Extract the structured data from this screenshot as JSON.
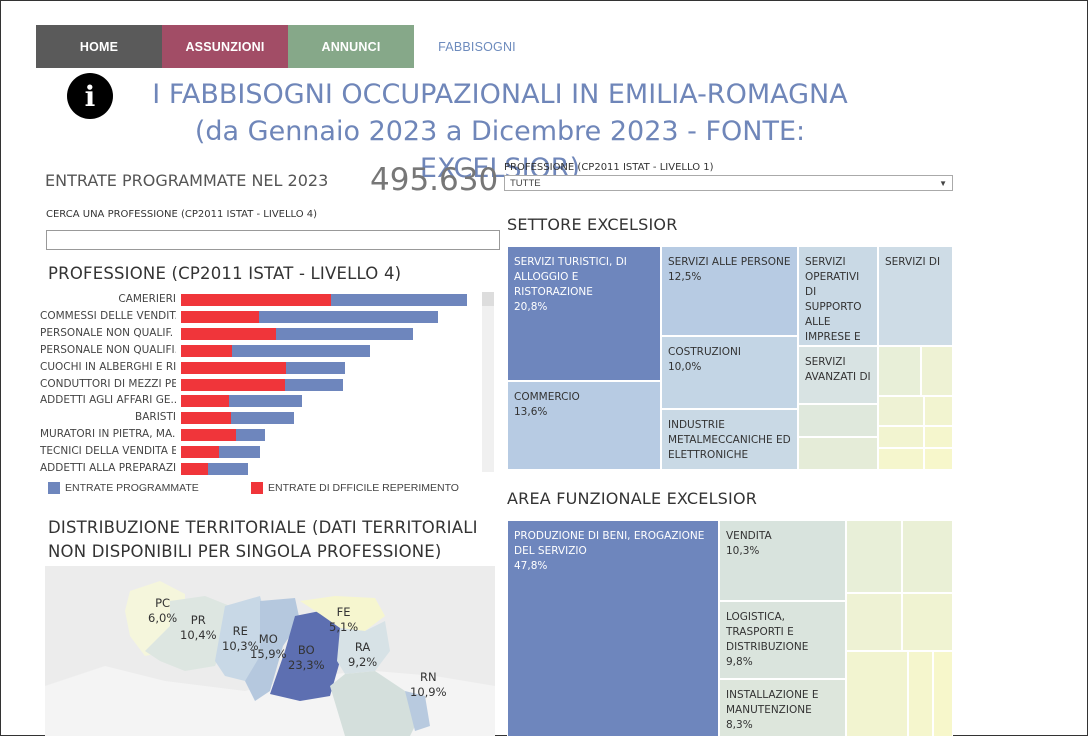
{
  "nav": {
    "home": "HOME",
    "assunzioni": "ASSUNZIONI",
    "annunci": "ANNUNCI",
    "fabbisogni": "FABBISOGNI"
  },
  "info_icon": "info-icon",
  "title_line1": "I FABBISOGNI OCCUPAZIONALI IN EMILIA-ROMAGNA",
  "title_line2": "(da Gennaio 2023 a Dicembre 2023 - FONTE: EXCELSIOR)",
  "entrate": {
    "label": "ENTRATE PROGRAMMATE NEL 2023",
    "value": "495.630"
  },
  "professione_filter": {
    "label": "PROFESSIONE (CP2011 ISTAT - LIVELLO 1)",
    "selected": "TUTTE"
  },
  "search": {
    "label": "CERCA UNA PROFESSIONE (CP2011 ISTAT - LIVELLO 4)",
    "value": ""
  },
  "professione_chart_title": "PROFESSIONE (CP2011 ISTAT - LIVELLO 4)",
  "colors": {
    "entrate": "#6e86bd",
    "difficile": "#f0353a"
  },
  "chart_data": {
    "type": "bar",
    "orientation": "horizontal",
    "categories": [
      "CAMERIERI",
      "COMMESSI DELLE VENDIT..",
      "PERSONALE NON QUALIF. ..",
      "PERSONALE NON QUALIFI..",
      "CUOCHI IN ALBERGHI E RI..",
      "CONDUTTORI DI MEZZI PE..",
      "ADDETTI AGLI AFFARI GE..",
      "BARISTI",
      "MURATORI IN PIETRA, MA..",
      "TECNICI DELLA VENDITA E..",
      "ADDETTI ALLA PREPARAZI.."
    ],
    "series": [
      {
        "name": "ENTRATE PROGRAMMATE",
        "values": [
          286,
          257,
          232,
          189,
          164,
          162,
          121,
          113,
          84,
          79,
          67
        ]
      },
      {
        "name": "ENTRATE DI DFFICILE REPERIMENTO",
        "values": [
          150,
          78,
          95,
          51,
          105,
          104,
          48,
          50,
          55,
          38,
          27
        ]
      }
    ],
    "legend": "bottom"
  },
  "settore": {
    "title": "SETTORE EXCELSIOR",
    "cells": [
      {
        "label": "SERVIZI TURISTICI, DI ALLOGGIO E RISTORAZIONE",
        "pct": "20,8%"
      },
      {
        "label": "SERVIZI ALLE PERSONE",
        "pct": "12,5%"
      },
      {
        "label": "SERVIZI OPERATIVI DI SUPPORTO ALLE IMPRESE E",
        "pct": ""
      },
      {
        "label": "SERVIZI DI",
        "pct": ""
      },
      {
        "label": "COSTRUZIONI",
        "pct": "10,0%"
      },
      {
        "label": "SERVIZI AVANZATI DI",
        "pct": ""
      },
      {
        "label": "COMMERCIO",
        "pct": "13,6%"
      },
      {
        "label": "INDUSTRIE METALMECCANICHE ED ELETTRONICHE",
        "pct": ""
      }
    ]
  },
  "area": {
    "title": "AREA FUNZIONALE EXCELSIOR",
    "cells": [
      {
        "label": "PRODUZIONE DI BENI, EROGAZIONE DEL SERVIZIO",
        "pct": "47,8%"
      },
      {
        "label": "VENDITA",
        "pct": "10,3%"
      },
      {
        "label": "LOGISTICA, TRASPORTI E DISTRIBUZIONE",
        "pct": "9,8%"
      },
      {
        "label": "INSTALLAZIONE E MANUTENZIONE",
        "pct": "8,3%"
      }
    ]
  },
  "distribuzione": {
    "title_line1": "DISTRIBUZIONE TERRITORIALE (DATI TERRITORIALI",
    "title_line2": "NON DISPONIBILI PER SINGOLA PROFESSIONE)",
    "provinces": [
      {
        "code": "PC",
        "pct": "6,0%"
      },
      {
        "code": "PR",
        "pct": "10,4%"
      },
      {
        "code": "RE",
        "pct": "10,3%"
      },
      {
        "code": "MO",
        "pct": "15,9%"
      },
      {
        "code": "BO",
        "pct": "23,3%"
      },
      {
        "code": "FE",
        "pct": "5,1%"
      },
      {
        "code": "RA",
        "pct": "9,2%"
      },
      {
        "code": "RN",
        "pct": "10,9%"
      }
    ]
  }
}
